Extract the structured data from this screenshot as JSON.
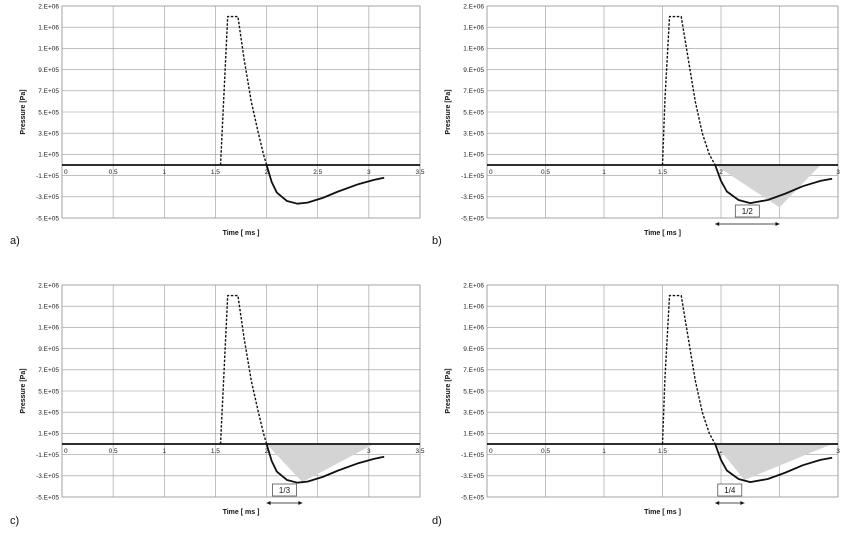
{
  "shared": {
    "y_tick_labels": [
      "2.E+06",
      "1.E+06",
      "1.E+06",
      "9.E+05",
      "7.E+05",
      "5.E+05",
      "3.E+05",
      "1.E+05",
      "-1.E+05",
      "-3.E+05",
      "-5.E+05"
    ],
    "y_tick_values": [
      1500000,
      1300000,
      1100000,
      900000,
      700000,
      500000,
      300000,
      100000,
      -100000,
      -300000,
      -500000
    ],
    "ylabel": "Pressure [Pa]",
    "xlabel": "Time [ ms ]",
    "colors": {
      "curve": "#111111",
      "grid": "#9a9a9a",
      "shade": "#d4d4d4",
      "axis": "#111111"
    }
  },
  "chart_data": [
    {
      "panel": "a)",
      "type": "line",
      "xlim": [
        0,
        3.5
      ],
      "ylim": [
        -500000,
        1500000
      ],
      "x_ticks": [
        0,
        0.5,
        1,
        1.5,
        2,
        2.5,
        3,
        3.5
      ],
      "x_tick_labels": [
        "0",
        "0.5",
        "1",
        "1.5",
        "2",
        "2.5",
        "3",
        "3.5"
      ],
      "grid": true,
      "series": [
        {
          "style": "solid",
          "points": [
            [
              0,
              0
            ],
            [
              1.55,
              0
            ],
            [
              3.5,
              0
            ]
          ]
        },
        {
          "style": "dashed",
          "points": [
            [
              1.55,
              0
            ],
            [
              1.58,
              600000
            ],
            [
              1.62,
              1400000
            ],
            [
              1.72,
              1400000
            ],
            [
              1.78,
              1000000
            ],
            [
              1.85,
              600000
            ],
            [
              1.92,
              300000
            ],
            [
              1.97,
              100000
            ],
            [
              2.0,
              0
            ]
          ]
        },
        {
          "style": "solid",
          "points": [
            [
              2.0,
              0
            ],
            [
              2.05,
              -160000
            ],
            [
              2.1,
              -260000
            ],
            [
              2.2,
              -340000
            ],
            [
              2.3,
              -365000
            ],
            [
              2.4,
              -355000
            ],
            [
              2.55,
              -310000
            ],
            [
              2.7,
              -250000
            ],
            [
              2.9,
              -180000
            ],
            [
              3.05,
              -140000
            ],
            [
              3.15,
              -120000
            ]
          ]
        }
      ]
    },
    {
      "panel": "b)",
      "type": "line",
      "xlim": [
        0,
        3
      ],
      "ylim": [
        -500000,
        1500000
      ],
      "x_ticks": [
        0,
        0.5,
        1,
        1.5,
        2,
        2.5,
        3
      ],
      "x_tick_labels": [
        "0",
        "0.5",
        "1",
        "1.5",
        "2",
        "2.5",
        "3"
      ],
      "grid": true,
      "series": [
        {
          "style": "solid",
          "points": [
            [
              0,
              0
            ],
            [
              1.5,
              0
            ],
            [
              3.0,
              0
            ]
          ]
        },
        {
          "style": "dashed",
          "points": [
            [
              1.5,
              0
            ],
            [
              1.52,
              600000
            ],
            [
              1.56,
              1400000
            ],
            [
              1.66,
              1400000
            ],
            [
              1.72,
              1000000
            ],
            [
              1.78,
              600000
            ],
            [
              1.84,
              300000
            ],
            [
              1.9,
              100000
            ],
            [
              1.95,
              0
            ]
          ]
        },
        {
          "style": "solid",
          "points": [
            [
              1.95,
              0
            ],
            [
              2.0,
              -150000
            ],
            [
              2.05,
              -250000
            ],
            [
              2.15,
              -330000
            ],
            [
              2.25,
              -360000
            ],
            [
              2.4,
              -330000
            ],
            [
              2.55,
              -270000
            ],
            [
              2.7,
              -200000
            ],
            [
              2.85,
              -150000
            ],
            [
              2.95,
              -130000
            ]
          ]
        }
      ],
      "shaded_region": [
        [
          1.95,
          0
        ],
        [
          2.85,
          0
        ],
        [
          2.5,
          -400000
        ]
      ],
      "annotation": {
        "label": "1/2",
        "x_start": 1.95,
        "x_end": 2.5
      }
    },
    {
      "panel": "c)",
      "type": "line",
      "xlim": [
        0,
        3.5
      ],
      "ylim": [
        -500000,
        1500000
      ],
      "x_ticks": [
        0,
        0.5,
        1,
        1.5,
        2,
        2.5,
        3,
        3.5
      ],
      "x_tick_labels": [
        "0",
        "0.5",
        "1",
        "1.5",
        "2",
        "2.5",
        "3",
        "3.5"
      ],
      "grid": true,
      "series": [
        {
          "style": "solid",
          "points": [
            [
              0,
              0
            ],
            [
              1.55,
              0
            ],
            [
              3.5,
              0
            ]
          ]
        },
        {
          "style": "dashed",
          "points": [
            [
              1.55,
              0
            ],
            [
              1.58,
              600000
            ],
            [
              1.62,
              1400000
            ],
            [
              1.72,
              1400000
            ],
            [
              1.78,
              1000000
            ],
            [
              1.85,
              600000
            ],
            [
              1.92,
              300000
            ],
            [
              1.97,
              100000
            ],
            [
              2.0,
              0
            ]
          ]
        },
        {
          "style": "solid",
          "points": [
            [
              2.0,
              0
            ],
            [
              2.05,
              -160000
            ],
            [
              2.1,
              -260000
            ],
            [
              2.2,
              -340000
            ],
            [
              2.3,
              -365000
            ],
            [
              2.4,
              -355000
            ],
            [
              2.55,
              -310000
            ],
            [
              2.7,
              -250000
            ],
            [
              2.9,
              -180000
            ],
            [
              3.05,
              -140000
            ],
            [
              3.15,
              -120000
            ]
          ]
        }
      ],
      "shaded_region": [
        [
          2.0,
          0
        ],
        [
          3.05,
          0
        ],
        [
          2.35,
          -360000
        ]
      ],
      "annotation": {
        "label": "1/3",
        "x_start": 2.0,
        "x_end": 2.35
      }
    },
    {
      "panel": "d)",
      "type": "line",
      "xlim": [
        0,
        3
      ],
      "ylim": [
        -500000,
        1500000
      ],
      "x_ticks": [
        0,
        0.5,
        1,
        1.5,
        2,
        2.5,
        3
      ],
      "x_tick_labels": [
        "0",
        "0.5",
        "1",
        "1.5",
        "2",
        "2.5",
        "3"
      ],
      "grid": true,
      "series": [
        {
          "style": "solid",
          "points": [
            [
              0,
              0
            ],
            [
              1.5,
              0
            ],
            [
              3.0,
              0
            ]
          ]
        },
        {
          "style": "dashed",
          "points": [
            [
              1.5,
              0
            ],
            [
              1.52,
              600000
            ],
            [
              1.56,
              1400000
            ],
            [
              1.66,
              1400000
            ],
            [
              1.72,
              1000000
            ],
            [
              1.78,
              600000
            ],
            [
              1.84,
              300000
            ],
            [
              1.9,
              100000
            ],
            [
              1.95,
              0
            ]
          ]
        },
        {
          "style": "solid",
          "points": [
            [
              1.95,
              0
            ],
            [
              2.0,
              -150000
            ],
            [
              2.05,
              -250000
            ],
            [
              2.15,
              -330000
            ],
            [
              2.25,
              -360000
            ],
            [
              2.4,
              -330000
            ],
            [
              2.55,
              -270000
            ],
            [
              2.7,
              -200000
            ],
            [
              2.85,
              -150000
            ],
            [
              2.95,
              -130000
            ]
          ]
        }
      ],
      "shaded_region": [
        [
          1.95,
          0
        ],
        [
          2.95,
          0
        ],
        [
          2.2,
          -340000
        ]
      ],
      "annotation": {
        "label": "1/4",
        "x_start": 1.95,
        "x_end": 2.2
      }
    }
  ]
}
